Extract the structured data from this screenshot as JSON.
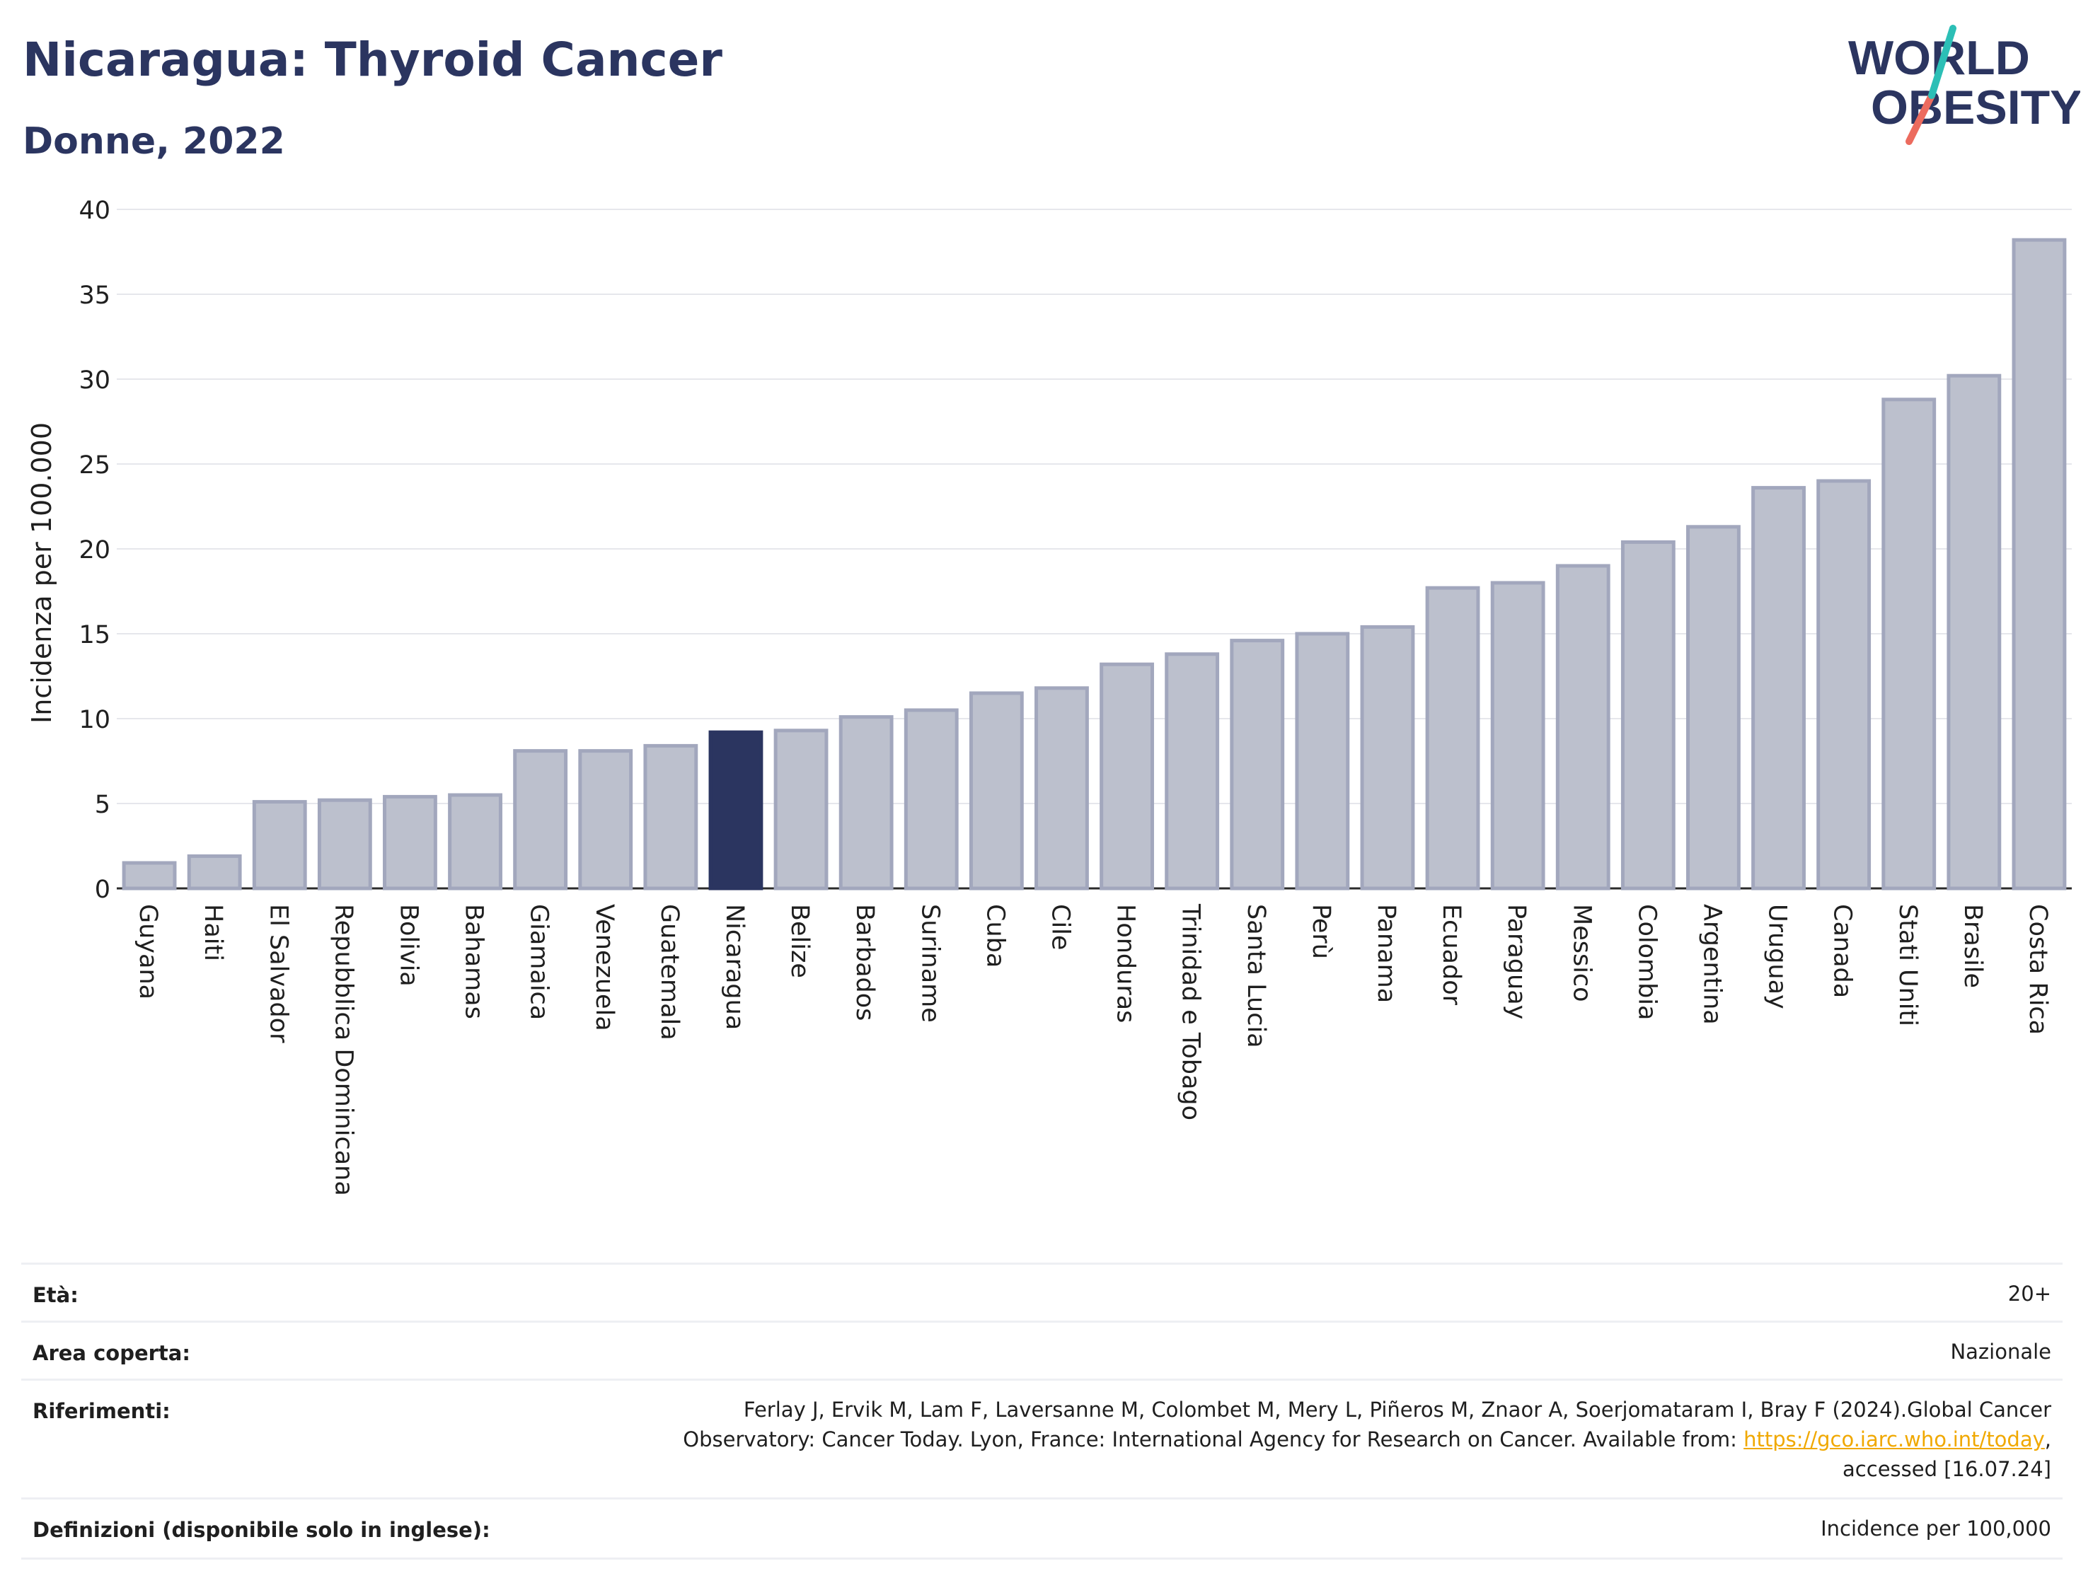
{
  "header": {
    "title": "Nicaragua: Thyroid Cancer",
    "subtitle": "Donne, 2022",
    "logo_line1": "WORLD",
    "logo_line2": "OBESITY"
  },
  "colors": {
    "title": "#2b3560",
    "bar_default": "#bcc0cd",
    "bar_default_stroke": "#a2a7bd",
    "bar_highlight": "#2b3560",
    "logo_teal": "#2cbfb6",
    "logo_coral": "#ec6b5e",
    "link": "#f0a800"
  },
  "chart_data": {
    "type": "bar",
    "ylabel": "Incidenza per 100.000",
    "ylim": [
      0,
      40
    ],
    "yticks": [
      0,
      5,
      10,
      15,
      20,
      25,
      30,
      35,
      40
    ],
    "grid": true,
    "highlight": "Nicaragua",
    "categories": [
      "Guyana",
      "Haiti",
      "El Salvador",
      "Repubblica Dominicana",
      "Bolivia",
      "Bahamas",
      "Giamaica",
      "Venezuela",
      "Guatemala",
      "Nicaragua",
      "Belize",
      "Barbados",
      "Suriname",
      "Cuba",
      "Cile",
      "Honduras",
      "Trinidad e Tobago",
      "Santa Lucia",
      "Perù",
      "Panama",
      "Ecuador",
      "Paraguay",
      "Messico",
      "Colombia",
      "Argentina",
      "Uruguay",
      "Canada",
      "Stati Uniti",
      "Brasile",
      "Costa Rica"
    ],
    "values": [
      1.5,
      1.9,
      5.1,
      5.2,
      5.4,
      5.5,
      8.1,
      8.1,
      8.4,
      9.2,
      9.3,
      10.1,
      10.5,
      11.5,
      11.8,
      13.2,
      13.8,
      14.6,
      15.0,
      15.4,
      17.7,
      18.0,
      19.0,
      20.4,
      21.3,
      23.6,
      24.0,
      28.8,
      30.2,
      38.2
    ]
  },
  "info": {
    "age_label": "Età:",
    "age_value": "20+",
    "area_label": "Area coperta:",
    "area_value": "Nazionale",
    "refs_label": "Riferimenti:",
    "refs_line1": "Ferlay J, Ervik M, Lam F, Laversanne M, Colombet M, Mery L, Piñeros M, Znaor A, Soerjomataram I, Bray F (2024).Global Cancer",
    "refs_line2_pre": "Observatory: Cancer Today. Lyon, France: International Agency for Research on Cancer. Available from: ",
    "refs_link": "https://gco.iarc.who.int/today",
    "refs_line2_post": ",",
    "refs_line3": "accessed [16.07.24]",
    "defs_label": "Definizioni (disponibile solo in inglese):",
    "defs_value": "Incidence per 100,000"
  }
}
